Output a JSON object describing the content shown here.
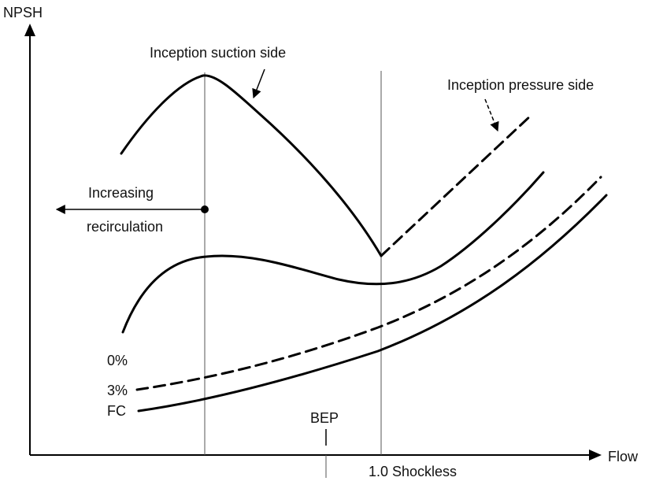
{
  "axes": {
    "y_label": "NPSH",
    "x_label": "Flow"
  },
  "annotations": {
    "inception_suction": "Inception suction side",
    "inception_pressure": "Inception pressure side",
    "increasing": "Increasing",
    "recirculation": "recirculation",
    "bep": "BEP",
    "shockless": "1.0 Shockless"
  },
  "curve_labels": {
    "zero_percent": "0%",
    "three_percent": "3%",
    "fc": "FC"
  }
}
